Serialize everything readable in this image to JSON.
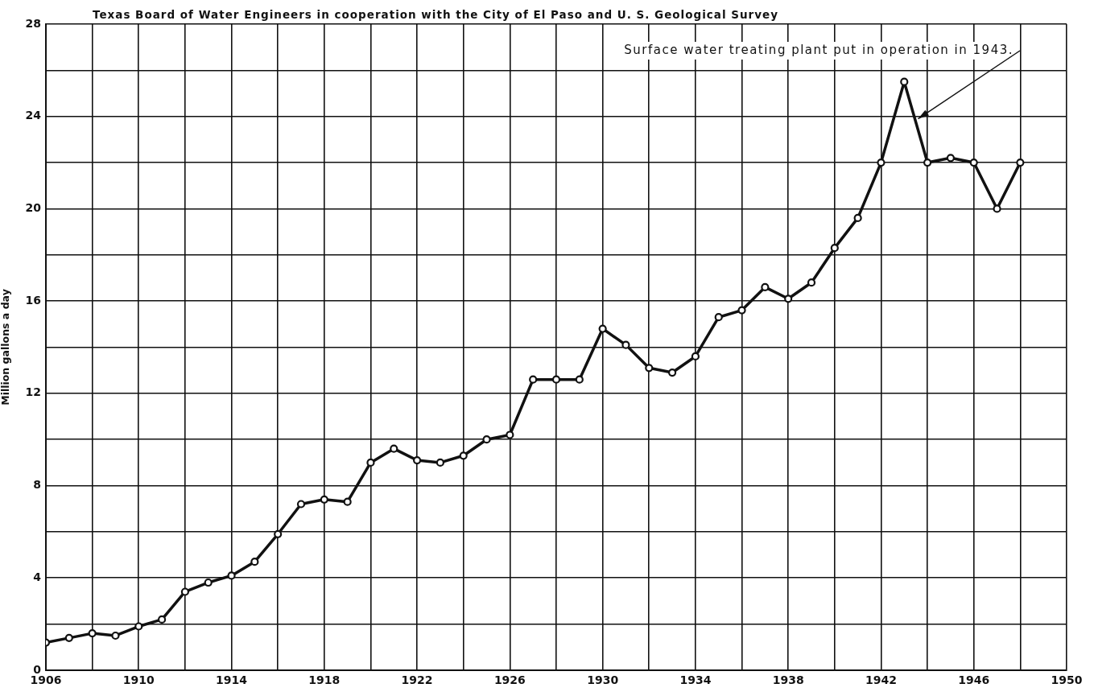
{
  "chart_data": {
    "type": "line",
    "title": "Texas Board of Water Engineers in cooperation with the City of El Paso and U. S. Geological Survey",
    "ylabel": "Million gallons a day",
    "x": [
      1906,
      1907,
      1908,
      1909,
      1910,
      1911,
      1912,
      1913,
      1914,
      1915,
      1916,
      1917,
      1918,
      1919,
      1920,
      1921,
      1922,
      1923,
      1924,
      1925,
      1926,
      1927,
      1928,
      1929,
      1930,
      1931,
      1932,
      1933,
      1934,
      1935,
      1936,
      1937,
      1938,
      1939,
      1940,
      1941,
      1942,
      1943,
      1944,
      1945,
      1946,
      1947,
      1948
    ],
    "series": [
      {
        "color": "#111111",
        "values": [
          1.2,
          1.4,
          1.6,
          1.5,
          1.9,
          2.2,
          3.4,
          3.8,
          4.1,
          4.7,
          5.9,
          7.2,
          7.4,
          7.3,
          9.0,
          9.6,
          9.1,
          9.0,
          9.3,
          10.0,
          10.2,
          12.6,
          12.6,
          12.6,
          14.8,
          14.1,
          13.1,
          12.9,
          13.6,
          15.3,
          15.6,
          16.6,
          16.1,
          16.8,
          18.3,
          19.6,
          22.0,
          25.5,
          22.0,
          22.2,
          22.0,
          20.0,
          22.0
        ]
      }
    ],
    "xlim": [
      1906,
      1950
    ],
    "xticks": [
      1906,
      {
        "value": 1908,
        "label": null
      },
      1910,
      {
        "value": 1912,
        "label": null
      },
      1914,
      {
        "value": 1916,
        "label": null
      },
      1918,
      {
        "value": 1920,
        "label": null
      },
      1922,
      {
        "value": 1924,
        "label": null
      },
      1926,
      {
        "value": 1928,
        "label": null
      },
      1930,
      {
        "value": 1932,
        "label": null
      },
      1934,
      {
        "value": 1936,
        "label": null
      },
      1938,
      {
        "value": 1940,
        "label": null
      },
      1942,
      {
        "value": 1944,
        "label": null
      },
      1946,
      {
        "value": 1948,
        "label": null
      },
      1950
    ],
    "ylim": [
      0,
      28
    ],
    "yticks": [
      0,
      {
        "value": 2,
        "label": null
      },
      4,
      {
        "value": 6,
        "label": null
      },
      8,
      {
        "value": 10,
        "label": null
      },
      12,
      {
        "value": 14,
        "label": null
      },
      16,
      {
        "value": 18,
        "label": null
      },
      20,
      {
        "value": 22,
        "label": null
      },
      24,
      {
        "value": 26,
        "label": null
      },
      28
    ],
    "annotations": [
      {
        "text": "Surface water treating plant put in operation in 1943.",
        "x": 1943.6,
        "y": 23.9
      }
    ],
    "grid": true,
    "marker": "circle",
    "line_style": "solid"
  }
}
